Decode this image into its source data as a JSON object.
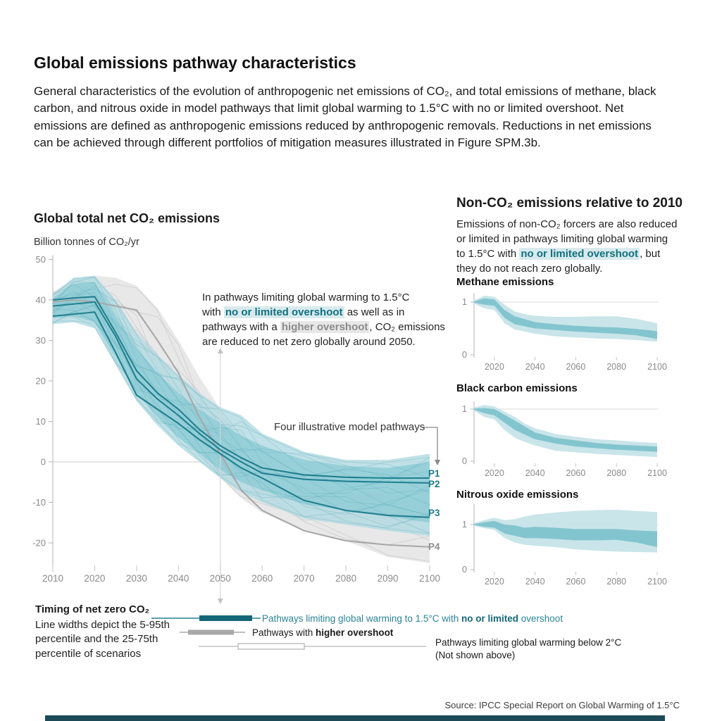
{
  "title": "Global emissions pathway characteristics",
  "intro": "General characteristics of the evolution of anthropogenic net emissions of CO₂, and total emissions of methane, black carbon, and nitrous oxide in model pathways that limit global warming to 1.5°C with no or limited overshoot. Net emissions are defined as anthropogenic emissions reduced by anthropogenic removals. Reductions in net emissions can be achieved through different portfolios of mitigation measures illustrated in Figure SPM.3b.",
  "left_chart": {
    "heading": "Global total net CO₂ emissions",
    "unit_label": "Billion tonnes of CO₂/yr",
    "annotation": {
      "l1": "In pathways limiting global warming to 1.5°C",
      "l2_pre": "with ",
      "l2_hl": "no or limited overshoot",
      "l2_post": " as well as in",
      "l3_pre": "pathways with a ",
      "l3_hl": "higher overshoot",
      "l3_post": ", CO₂ emissions",
      "l4": "are reduced to net zero globally around 2050."
    },
    "callout": "Four illustrative model pathways"
  },
  "right": {
    "heading": "Non-CO₂ emissions relative to 2010",
    "desc": {
      "l1": "Emissions of non-CO₂ forcers are also reduced",
      "l2": "or limited in pathways limiting global warming",
      "l3_pre": "to 1.5°C with ",
      "l3_hl": "no or limited overshoot",
      "l3_post": ", but",
      "l4": "they do not reach zero globally."
    }
  },
  "legend": {
    "title": "Timing of net zero CO₂",
    "subtitle_l1": "Line widths depict the 5-95th",
    "subtitle_l2": "percentile and the 25-75th",
    "subtitle_l3": "percentile of scenarios",
    "item1_pre": "Pathways limiting global warming to 1.5°C with ",
    "item1_bold": "no or limited",
    "item1_post": " overshoot",
    "item2_pre": "Pathways with ",
    "item2_bold": "higher overshoot",
    "item3_l1": "Pathways limiting global warming below 2°C",
    "item3_l2": "(Not shown above)"
  },
  "source": "Source: IPCC Special Report on Global Warming of 1.5°C",
  "colors": {
    "teal_dark": "#156778",
    "teal_line": "#22808f",
    "teal_band_outer": "#b0dae1",
    "teal_band_inner": "#8fccd6",
    "teal_spaghetti": "#58abb9",
    "gray_band": "#e4e4e4",
    "gray_line": "#a8a8a8",
    "axis_text": "#8a8a8a",
    "grid": "#d9d9d9"
  },
  "chart_data": {
    "main": {
      "type": "area",
      "title": "Global total net CO₂ emissions",
      "ylabel": "Billion tonnes of CO₂/yr",
      "x_ticks": [
        2010,
        2020,
        2030,
        2040,
        2050,
        2060,
        2070,
        2080,
        2090,
        2100
      ],
      "y_ticks": [
        50,
        40,
        30,
        20,
        10,
        0,
        -10,
        -20
      ],
      "ylim": [
        -25,
        50
      ],
      "net_zero_year_annotated": 2050,
      "bands": {
        "teal_outer_5_95": [
          [
            2010,
            34,
            41.5
          ],
          [
            2015,
            34.5,
            45.5
          ],
          [
            2020,
            33,
            46
          ],
          [
            2025,
            24,
            40
          ],
          [
            2030,
            15,
            32
          ],
          [
            2035,
            9,
            26.5
          ],
          [
            2040,
            4,
            21.5
          ],
          [
            2045,
            0,
            17
          ],
          [
            2050,
            -4,
            13.5
          ],
          [
            2055,
            -7.5,
            11.5
          ],
          [
            2060,
            -10,
            7
          ],
          [
            2070,
            -14,
            2.5
          ],
          [
            2080,
            -15.5,
            0.5
          ],
          [
            2090,
            -17,
            0.5
          ],
          [
            2100,
            -18.3,
            2
          ]
        ],
        "teal_inner_25_75": [
          [
            2010,
            35.5,
            40.5
          ],
          [
            2015,
            36,
            44
          ],
          [
            2020,
            34.5,
            44.5
          ],
          [
            2025,
            26,
            36
          ],
          [
            2030,
            17,
            28
          ],
          [
            2035,
            11,
            22
          ],
          [
            2040,
            6,
            17
          ],
          [
            2045,
            2,
            13
          ],
          [
            2050,
            -2,
            9.5
          ],
          [
            2055,
            -5,
            6.5
          ],
          [
            2060,
            -7,
            4
          ],
          [
            2070,
            -10.5,
            0.5
          ],
          [
            2080,
            -12,
            -1
          ],
          [
            2090,
            -13.5,
            -1.5
          ],
          [
            2100,
            -15,
            0
          ]
        ],
        "gray_outer_higher_overshoot": [
          [
            2010,
            35,
            42
          ],
          [
            2015,
            35.5,
            45
          ],
          [
            2020,
            35,
            46
          ],
          [
            2025,
            32,
            45.5
          ],
          [
            2030,
            26,
            43.5
          ],
          [
            2035,
            17,
            38
          ],
          [
            2040,
            9,
            30
          ],
          [
            2045,
            2,
            21
          ],
          [
            2050,
            -4,
            13
          ],
          [
            2055,
            -9,
            5
          ],
          [
            2060,
            -12.5,
            0
          ],
          [
            2070,
            -17,
            -5
          ],
          [
            2080,
            -19.5,
            -6.5
          ],
          [
            2090,
            -23.5,
            -8
          ],
          [
            2100,
            -25,
            -10
          ]
        ]
      },
      "pathways": [
        {
          "label": "P1",
          "group": "teal",
          "values": [
            [
              2010,
              40
            ],
            [
              2015,
              40.5
            ],
            [
              2020,
              40.8
            ],
            [
              2025,
              32
            ],
            [
              2030,
              22.5
            ],
            [
              2035,
              17
            ],
            [
              2040,
              13
            ],
            [
              2045,
              8
            ],
            [
              2050,
              4
            ],
            [
              2055,
              1
            ],
            [
              2060,
              -1.5
            ],
            [
              2070,
              -3.2
            ],
            [
              2080,
              -3.8
            ],
            [
              2090,
              -4
            ],
            [
              2100,
              -4
            ]
          ]
        },
        {
          "label": "P2",
          "group": "teal",
          "values": [
            [
              2010,
              38.5
            ],
            [
              2015,
              39
            ],
            [
              2020,
              39.5
            ],
            [
              2025,
              31
            ],
            [
              2030,
              20.5
            ],
            [
              2035,
              15.5
            ],
            [
              2040,
              11.5
            ],
            [
              2045,
              7
            ],
            [
              2050,
              3
            ],
            [
              2055,
              0
            ],
            [
              2060,
              -2.8
            ],
            [
              2070,
              -4.3
            ],
            [
              2080,
              -4.8
            ],
            [
              2090,
              -5
            ],
            [
              2100,
              -5.2
            ]
          ]
        },
        {
          "label": "P3",
          "group": "teal",
          "values": [
            [
              2010,
              36
            ],
            [
              2015,
              36.5
            ],
            [
              2020,
              37
            ],
            [
              2025,
              27
            ],
            [
              2030,
              16.5
            ],
            [
              2035,
              13
            ],
            [
              2040,
              9.5
            ],
            [
              2045,
              5.5
            ],
            [
              2050,
              2
            ],
            [
              2055,
              -1.5
            ],
            [
              2060,
              -4
            ],
            [
              2070,
              -9.5
            ],
            [
              2080,
              -12
            ],
            [
              2090,
              -13.2
            ],
            [
              2100,
              -13.7
            ]
          ]
        },
        {
          "label": "P4",
          "group": "gray",
          "values": [
            [
              2010,
              39.5
            ],
            [
              2015,
              40
            ],
            [
              2020,
              39.5
            ],
            [
              2030,
              37.5
            ],
            [
              2035,
              30
            ],
            [
              2040,
              22
            ],
            [
              2045,
              11
            ],
            [
              2050,
              2
            ],
            [
              2055,
              -7
            ],
            [
              2060,
              -12
            ],
            [
              2070,
              -17
            ],
            [
              2080,
              -19.5
            ],
            [
              2090,
              -20.5
            ],
            [
              2100,
              -21
            ]
          ]
        }
      ]
    },
    "methane": {
      "type": "area",
      "title": "Methane emissions",
      "x_ticks": [
        2020,
        2040,
        2060,
        2080,
        2100
      ],
      "y_ticks": [
        0,
        1
      ],
      "outer_5_95": [
        [
          2010,
          0.97,
          1.03
        ],
        [
          2015,
          0.88,
          1.12
        ],
        [
          2020,
          0.85,
          1.1
        ],
        [
          2025,
          0.6,
          0.95
        ],
        [
          2030,
          0.48,
          0.82
        ],
        [
          2035,
          0.44,
          0.77
        ],
        [
          2040,
          0.4,
          0.74
        ],
        [
          2050,
          0.35,
          0.72
        ],
        [
          2060,
          0.33,
          0.72
        ],
        [
          2070,
          0.31,
          0.73
        ],
        [
          2080,
          0.3,
          0.73
        ],
        [
          2090,
          0.28,
          0.68
        ],
        [
          2100,
          0.25,
          0.6
        ]
      ],
      "inner_25_75": [
        [
          2010,
          0.99,
          1.01
        ],
        [
          2015,
          0.95,
          1.07
        ],
        [
          2020,
          0.93,
          1.05
        ],
        [
          2025,
          0.7,
          0.85
        ],
        [
          2030,
          0.58,
          0.73
        ],
        [
          2040,
          0.5,
          0.62
        ],
        [
          2050,
          0.47,
          0.58
        ],
        [
          2060,
          0.44,
          0.55
        ],
        [
          2070,
          0.42,
          0.53
        ],
        [
          2080,
          0.4,
          0.52
        ],
        [
          2090,
          0.37,
          0.49
        ],
        [
          2100,
          0.3,
          0.45
        ]
      ]
    },
    "black_carbon": {
      "type": "area",
      "title": "Black carbon emissions",
      "x_ticks": [
        2020,
        2040,
        2060,
        2080,
        2100
      ],
      "y_ticks": [
        0,
        1
      ],
      "outer_5_95": [
        [
          2010,
          0.97,
          1.03
        ],
        [
          2015,
          0.85,
          1.08
        ],
        [
          2020,
          0.8,
          1.05
        ],
        [
          2025,
          0.6,
          0.95
        ],
        [
          2030,
          0.45,
          0.85
        ],
        [
          2035,
          0.37,
          0.72
        ],
        [
          2040,
          0.3,
          0.63
        ],
        [
          2045,
          0.25,
          0.58
        ],
        [
          2050,
          0.2,
          0.52
        ],
        [
          2060,
          0.17,
          0.47
        ],
        [
          2070,
          0.14,
          0.42
        ],
        [
          2080,
          0.12,
          0.4
        ],
        [
          2090,
          0.1,
          0.37
        ],
        [
          2100,
          0.08,
          0.35
        ]
      ],
      "inner_25_75": [
        [
          2010,
          0.99,
          1.01
        ],
        [
          2015,
          0.92,
          1.02
        ],
        [
          2020,
          0.88,
          1.0
        ],
        [
          2030,
          0.6,
          0.78
        ],
        [
          2040,
          0.42,
          0.55
        ],
        [
          2050,
          0.34,
          0.45
        ],
        [
          2060,
          0.28,
          0.4
        ],
        [
          2070,
          0.25,
          0.35
        ],
        [
          2080,
          0.22,
          0.32
        ],
        [
          2090,
          0.2,
          0.3
        ],
        [
          2100,
          0.18,
          0.28
        ]
      ]
    },
    "nitrous_oxide": {
      "type": "area",
      "title": "Nitrous oxide emissions",
      "x_ticks": [
        2020,
        2040,
        2060,
        2080,
        2100
      ],
      "y_ticks": [
        0,
        1
      ],
      "outer_5_95": [
        [
          2010,
          0.97,
          1.03
        ],
        [
          2015,
          0.92,
          1.1
        ],
        [
          2020,
          0.88,
          1.15
        ],
        [
          2025,
          0.7,
          1.1
        ],
        [
          2030,
          0.6,
          1.12
        ],
        [
          2035,
          0.55,
          1.18
        ],
        [
          2040,
          0.53,
          1.22
        ],
        [
          2050,
          0.5,
          1.27
        ],
        [
          2060,
          0.45,
          1.3
        ],
        [
          2070,
          0.42,
          1.32
        ],
        [
          2080,
          0.4,
          1.33
        ],
        [
          2090,
          0.39,
          1.3
        ],
        [
          2100,
          0.38,
          1.28
        ]
      ],
      "inner_25_75": [
        [
          2010,
          0.99,
          1.01
        ],
        [
          2015,
          0.95,
          1.05
        ],
        [
          2020,
          0.93,
          1.08
        ],
        [
          2025,
          0.8,
          1.0
        ],
        [
          2030,
          0.75,
          0.98
        ],
        [
          2035,
          0.7,
          0.93
        ],
        [
          2040,
          0.7,
          0.95
        ],
        [
          2050,
          0.68,
          0.93
        ],
        [
          2060,
          0.65,
          0.9
        ],
        [
          2070,
          0.65,
          0.9
        ],
        [
          2080,
          0.66,
          0.9
        ],
        [
          2090,
          0.6,
          0.87
        ],
        [
          2100,
          0.5,
          0.85
        ]
      ]
    }
  }
}
